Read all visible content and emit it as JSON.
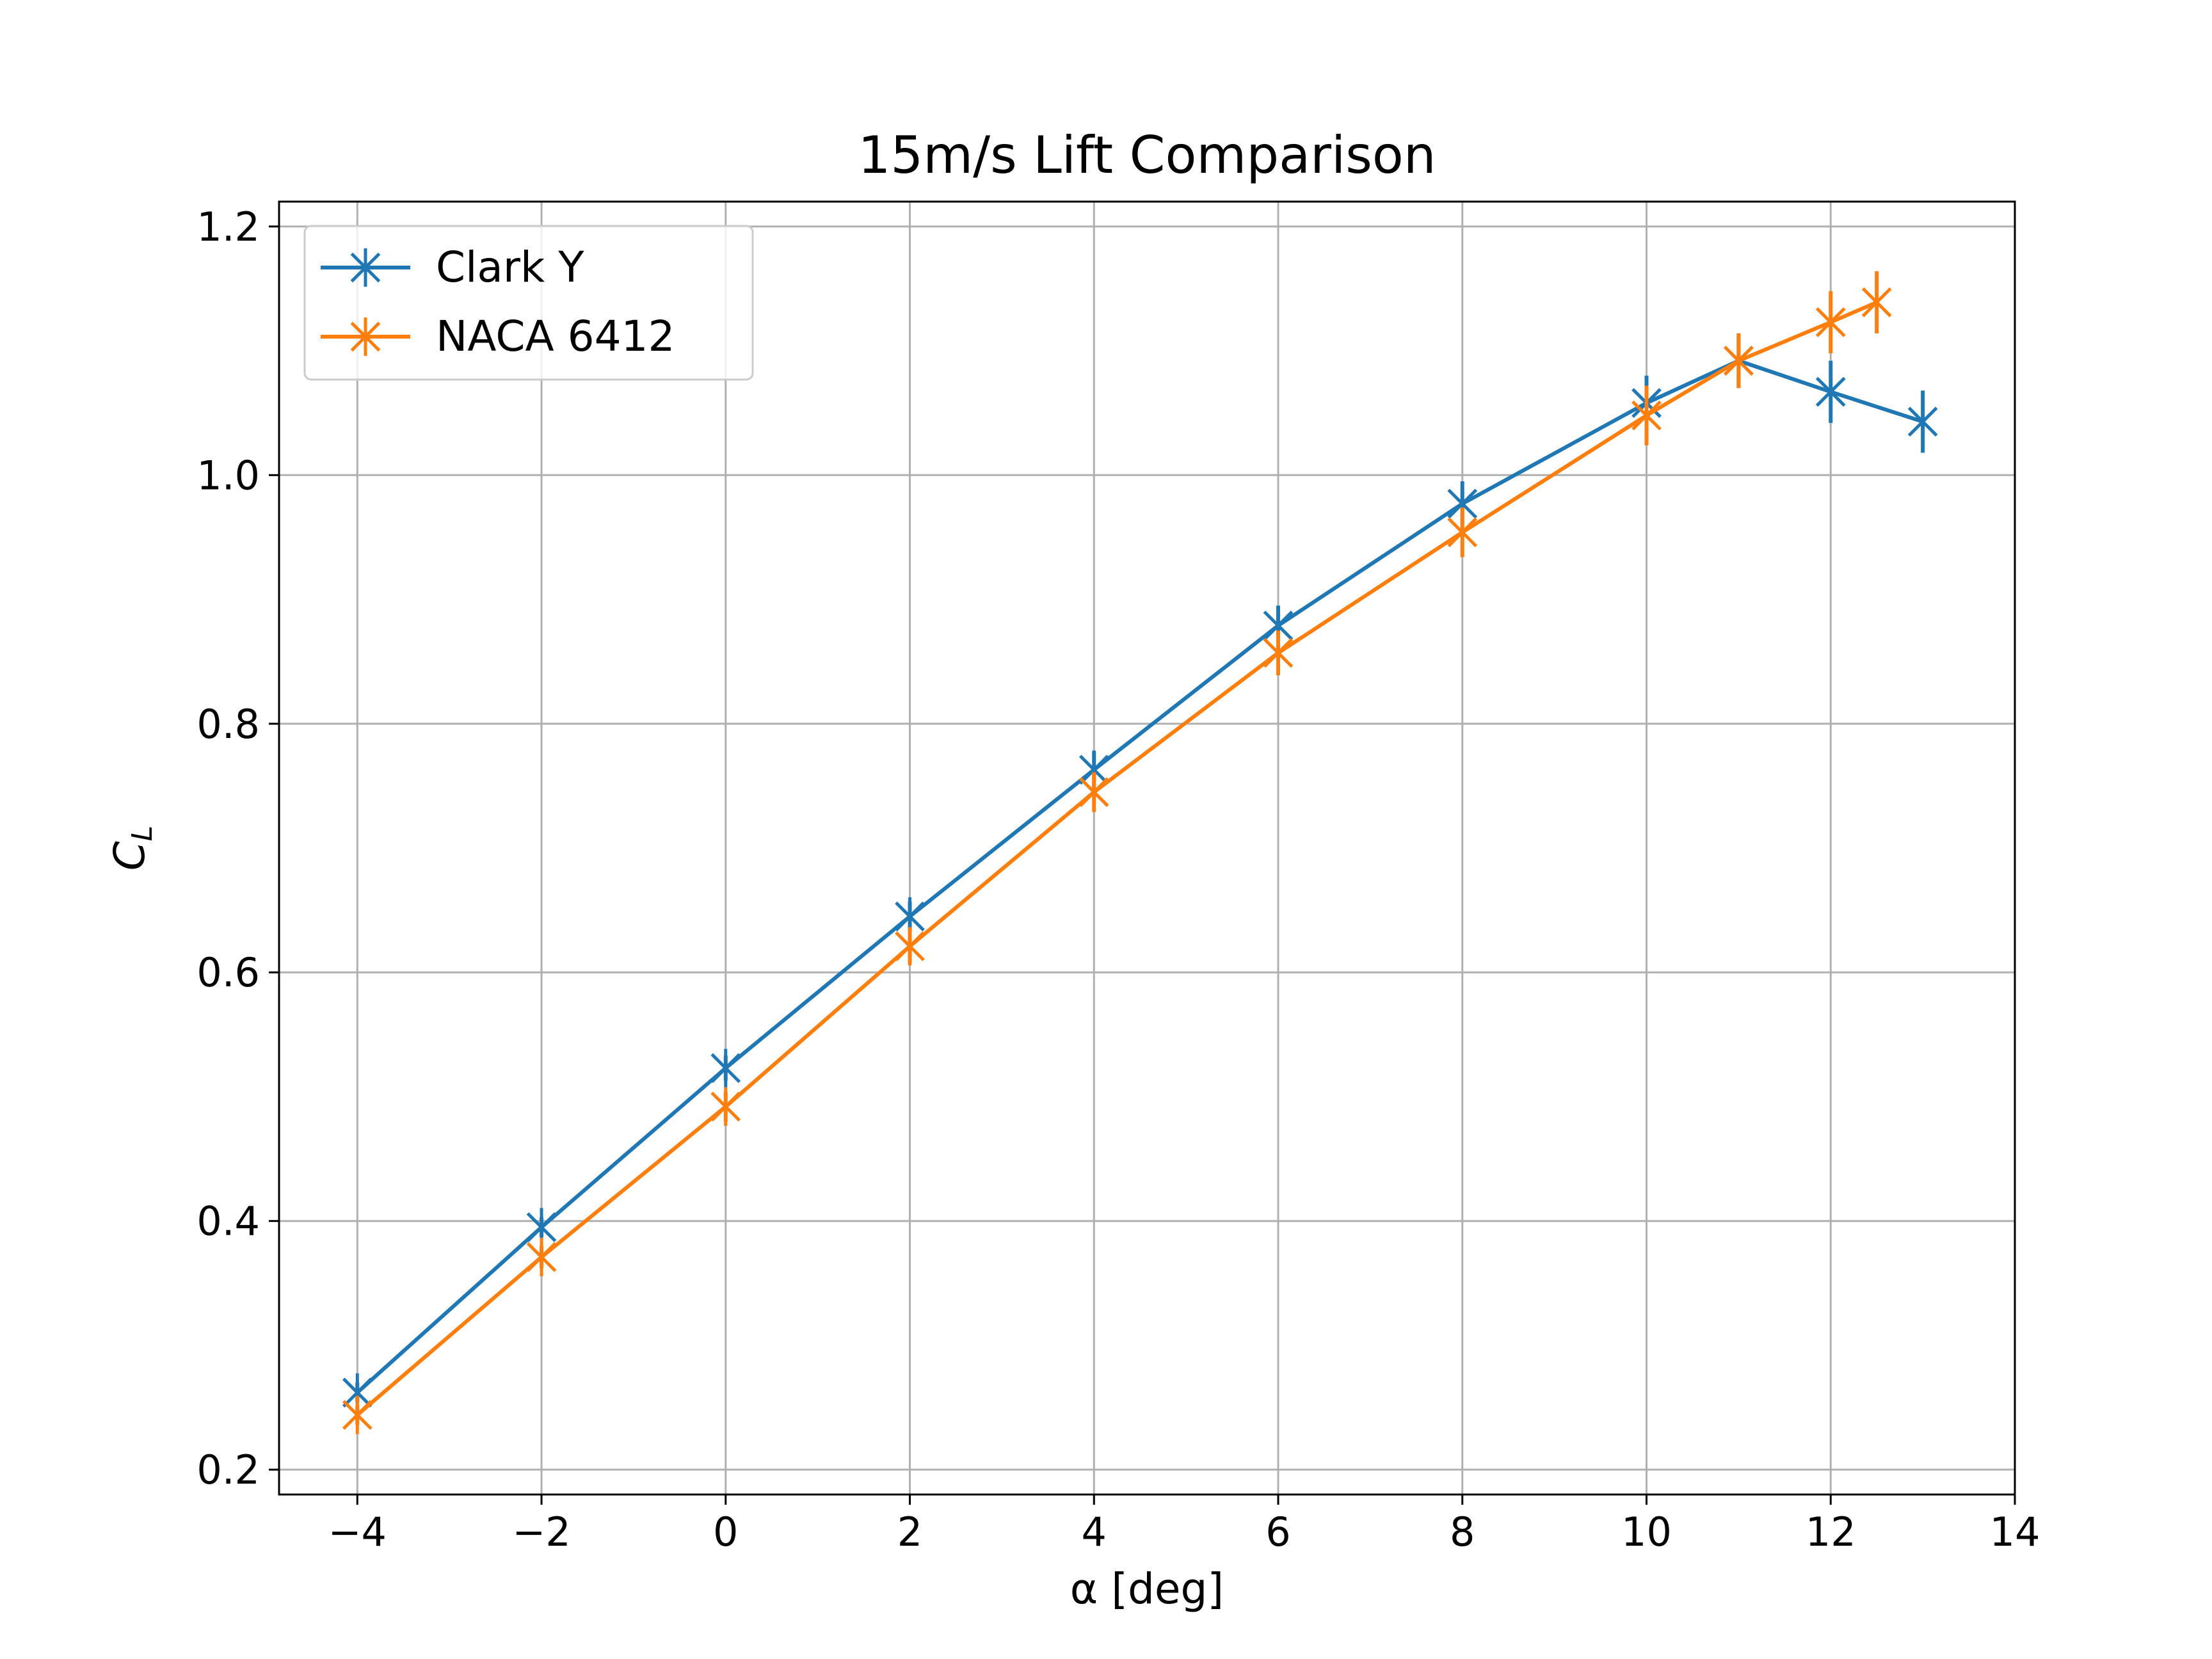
{
  "chart_data": {
    "type": "line",
    "title": "15m/s Lift Comparison",
    "xlabel": "α [deg]",
    "ylabel": {
      "main": "C",
      "sub": "L"
    },
    "xlim": [
      -4.85,
      14.0
    ],
    "ylim": [
      0.18,
      1.22
    ],
    "xticks": [
      -4,
      -2,
      0,
      2,
      4,
      6,
      8,
      10,
      12,
      14
    ],
    "xtick_labels": [
      "−4",
      "−2",
      "0",
      "2",
      "4",
      "6",
      "8",
      "10",
      "12",
      "14"
    ],
    "yticks": [
      0.2,
      0.4,
      0.6,
      0.8,
      1.0,
      1.2
    ],
    "ytick_labels": [
      "0.2",
      "0.4",
      "0.6",
      "0.8",
      "1.0",
      "1.2"
    ],
    "grid": true,
    "legend": "upper left",
    "marker": "x-star",
    "series": [
      {
        "name": "Clark Y",
        "color": "#1f77b4",
        "x": [
          -4,
          -2,
          0,
          2,
          4,
          6,
          8,
          10,
          11,
          12,
          13
        ],
        "y": [
          0.262,
          0.395,
          0.523,
          0.645,
          0.763,
          0.879,
          0.977,
          1.058,
          1.092,
          1.067,
          1.043
        ],
        "yerr": [
          0.008,
          0.008,
          0.01,
          0.012,
          0.015,
          0.016,
          0.018,
          0.022,
          0.022,
          0.025,
          0.025
        ]
      },
      {
        "name": "NACA 6412",
        "color": "#ff7f0e",
        "x": [
          -4,
          -2,
          0,
          2,
          4,
          6,
          8,
          10,
          11,
          12,
          12.5
        ],
        "y": [
          0.244,
          0.371,
          0.492,
          0.621,
          0.745,
          0.857,
          0.954,
          1.048,
          1.092,
          1.123,
          1.139
        ],
        "yerr": [
          0.008,
          0.009,
          0.012,
          0.014,
          0.016,
          0.018,
          0.02,
          0.024,
          0.022,
          0.025,
          0.025
        ]
      }
    ]
  }
}
